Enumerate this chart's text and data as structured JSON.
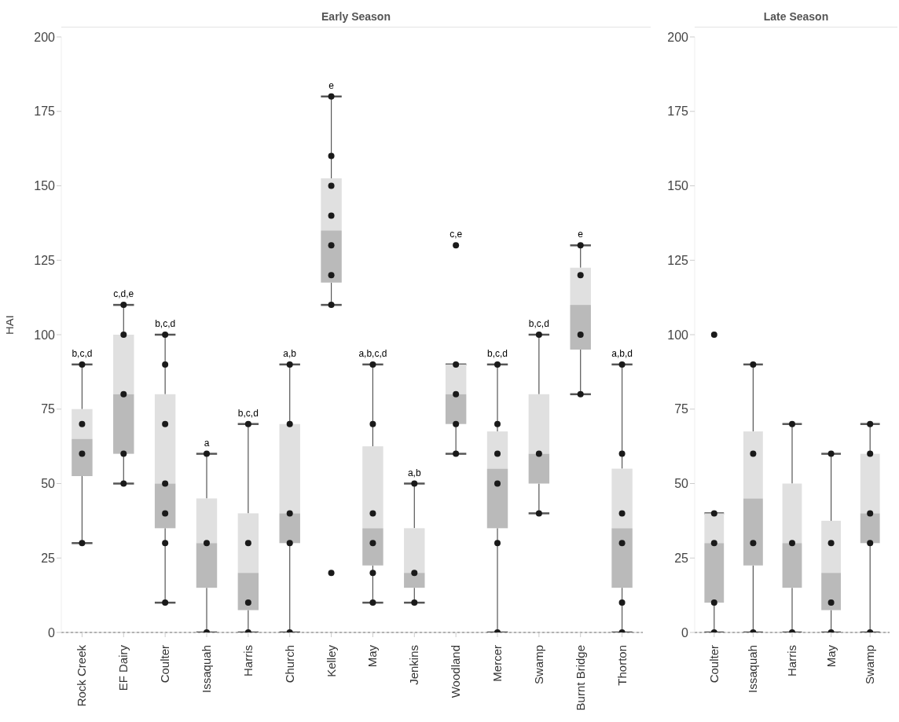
{
  "chart_data": [
    {
      "type": "box",
      "title": "Early Season",
      "ylabel": "HAI",
      "categories": [
        "Rock Creek",
        "EF Dairy",
        "Coulter",
        "Issaquah",
        "Harris",
        "Church",
        "Kelley",
        "May",
        "Jenkins",
        "Woodland",
        "Mercer",
        "Swamp",
        "Burnt Bridge",
        "Thorton"
      ],
      "ylim": [
        0,
        200
      ],
      "yticks": [
        0,
        25,
        50,
        75,
        100,
        125,
        150,
        175,
        200
      ],
      "marker": "circle",
      "series": [
        {
          "type": "box",
          "color": "#bababa",
          "boxes": [
            {
              "low": 30,
              "q1": 52.5,
              "median": 65,
              "q3": 75,
              "high": 90
            },
            {
              "low": 50,
              "q1": 60,
              "median": 80,
              "q3": 100,
              "high": 110
            },
            {
              "low": 10,
              "q1": 35,
              "median": 50,
              "q3": 80,
              "high": 100
            },
            {
              "low": 0,
              "q1": 15,
              "median": 30,
              "q3": 45,
              "high": 60
            },
            {
              "low": 0,
              "q1": 7.5,
              "median": 20,
              "q3": 40,
              "high": 70
            },
            {
              "low": 0,
              "q1": 30,
              "median": 40,
              "q3": 70,
              "high": 90
            },
            {
              "low": 110,
              "q1": 117.5,
              "median": 135,
              "q3": 152.5,
              "high": 180
            },
            {
              "low": 10,
              "q1": 22.5,
              "median": 35,
              "q3": 62.5,
              "high": 90
            },
            {
              "low": 10,
              "q1": 15,
              "median": 20,
              "q3": 35,
              "high": 50
            },
            {
              "low": 60,
              "q1": 70,
              "median": 80,
              "q3": 90,
              "high": 90
            },
            {
              "low": 0,
              "q1": 35,
              "median": 55,
              "q3": 67.5,
              "high": 90
            },
            {
              "low": 40,
              "q1": 50,
              "median": 60,
              "q3": 80,
              "high": 100
            },
            {
              "low": 80,
              "q1": 95,
              "median": 110,
              "q3": 122.5,
              "high": 130
            },
            {
              "low": 0,
              "q1": 15,
              "median": 35,
              "q3": 55,
              "high": 90
            }
          ]
        },
        {
          "type": "scatter",
          "color": "#1a1a1a",
          "x": [
            "Rock Creek",
            "Rock Creek",
            "Rock Creek",
            "Rock Creek",
            "EF Dairy",
            "EF Dairy",
            "EF Dairy",
            "EF Dairy",
            "EF Dairy",
            "Coulter",
            "Coulter",
            "Coulter",
            "Coulter",
            "Coulter",
            "Coulter",
            "Coulter",
            "Issaquah",
            "Issaquah",
            "Issaquah",
            "Harris",
            "Harris",
            "Harris",
            "Harris",
            "Church",
            "Church",
            "Church",
            "Church",
            "Church",
            "Kelley",
            "Kelley",
            "Kelley",
            "Kelley",
            "Kelley",
            "Kelley",
            "Kelley",
            "Kelley",
            "May",
            "May",
            "May",
            "May",
            "May",
            "May",
            "Jenkins",
            "Jenkins",
            "Jenkins",
            "Woodland",
            "Woodland",
            "Woodland",
            "Woodland",
            "Woodland",
            "Mercer",
            "Mercer",
            "Mercer",
            "Mercer",
            "Mercer",
            "Mercer",
            "Swamp",
            "Swamp",
            "Swamp",
            "Burnt Bridge",
            "Burnt Bridge",
            "Burnt Bridge",
            "Burnt Bridge",
            "Thorton",
            "Thorton",
            "Thorton",
            "Thorton",
            "Thorton",
            "Thorton"
          ],
          "values": [
            90,
            70,
            60,
            30,
            110,
            100,
            80,
            60,
            50,
            100,
            90,
            70,
            50,
            40,
            30,
            10,
            60,
            30,
            0,
            70,
            30,
            10,
            0,
            90,
            70,
            40,
            30,
            0,
            180,
            160,
            150,
            140,
            130,
            120,
            110,
            20,
            90,
            70,
            40,
            30,
            20,
            10,
            50,
            20,
            10,
            130,
            90,
            80,
            70,
            60,
            90,
            70,
            60,
            50,
            30,
            0,
            100,
            60,
            40,
            130,
            120,
            100,
            80,
            90,
            60,
            40,
            30,
            10,
            0
          ]
        }
      ],
      "ref_lines": [
        {
          "axis": "y",
          "value": 0,
          "line_style": "dashed",
          "color": "#333333"
        }
      ],
      "annotations": [
        {
          "text": "b,c,d",
          "x": "Rock Creek",
          "y": 90
        },
        {
          "text": "c,d,e",
          "x": "EF Dairy",
          "y": 110
        },
        {
          "text": "b,c,d",
          "x": "Coulter",
          "y": 100
        },
        {
          "text": "a",
          "x": "Issaquah",
          "y": 60
        },
        {
          "text": "b,c,d",
          "x": "Harris",
          "y": 70
        },
        {
          "text": "a,b",
          "x": "Church",
          "y": 90
        },
        {
          "text": "e",
          "x": "Kelley",
          "y": 180
        },
        {
          "text": "a,b,c,d",
          "x": "May",
          "y": 90
        },
        {
          "text": "a,b",
          "x": "Jenkins",
          "y": 50
        },
        {
          "text": "c,e",
          "x": "Woodland",
          "y": 130
        },
        {
          "text": "b,c,d",
          "x": "Mercer",
          "y": 90
        },
        {
          "text": "b,c,d",
          "x": "Swamp",
          "y": 100
        },
        {
          "text": "e",
          "x": "Burnt Bridge",
          "y": 130
        },
        {
          "text": "a,b,d",
          "x": "Thorton",
          "y": 90
        }
      ]
    },
    {
      "type": "box",
      "title": "Late Season",
      "categories": [
        "Coulter",
        "Issaquah",
        "Harris",
        "May",
        "Swamp"
      ],
      "ylim": [
        0,
        200
      ],
      "yticks": [
        0,
        25,
        50,
        75,
        100,
        125,
        150,
        175,
        200
      ],
      "marker": "circle",
      "series": [
        {
          "type": "box",
          "color": "#bababa",
          "boxes": [
            {
              "low": 0,
              "q1": 10,
              "median": 30,
              "q3": 40,
              "high": 40
            },
            {
              "low": 0,
              "q1": 22.5,
              "median": 45,
              "q3": 67.5,
              "high": 90
            },
            {
              "low": 0,
              "q1": 15,
              "median": 30,
              "q3": 50,
              "high": 70
            },
            {
              "low": 0,
              "q1": 7.5,
              "median": 20,
              "q3": 37.5,
              "high": 60
            },
            {
              "low": 0,
              "q1": 30,
              "median": 40,
              "q3": 60,
              "high": 70
            }
          ]
        },
        {
          "type": "scatter",
          "color": "#1a1a1a",
          "x": [
            "Coulter",
            "Coulter",
            "Coulter",
            "Coulter",
            "Coulter",
            "Issaquah",
            "Issaquah",
            "Issaquah",
            "Issaquah",
            "Harris",
            "Harris",
            "Harris",
            "May",
            "May",
            "May",
            "May",
            "Swamp",
            "Swamp",
            "Swamp",
            "Swamp",
            "Swamp"
          ],
          "values": [
            100,
            40,
            30,
            10,
            0,
            90,
            60,
            30,
            0,
            70,
            30,
            0,
            60,
            30,
            10,
            0,
            70,
            60,
            40,
            30,
            0
          ]
        }
      ],
      "ref_lines": [
        {
          "axis": "y",
          "value": 0,
          "line_style": "dashed",
          "color": "#333333"
        }
      ]
    }
  ]
}
